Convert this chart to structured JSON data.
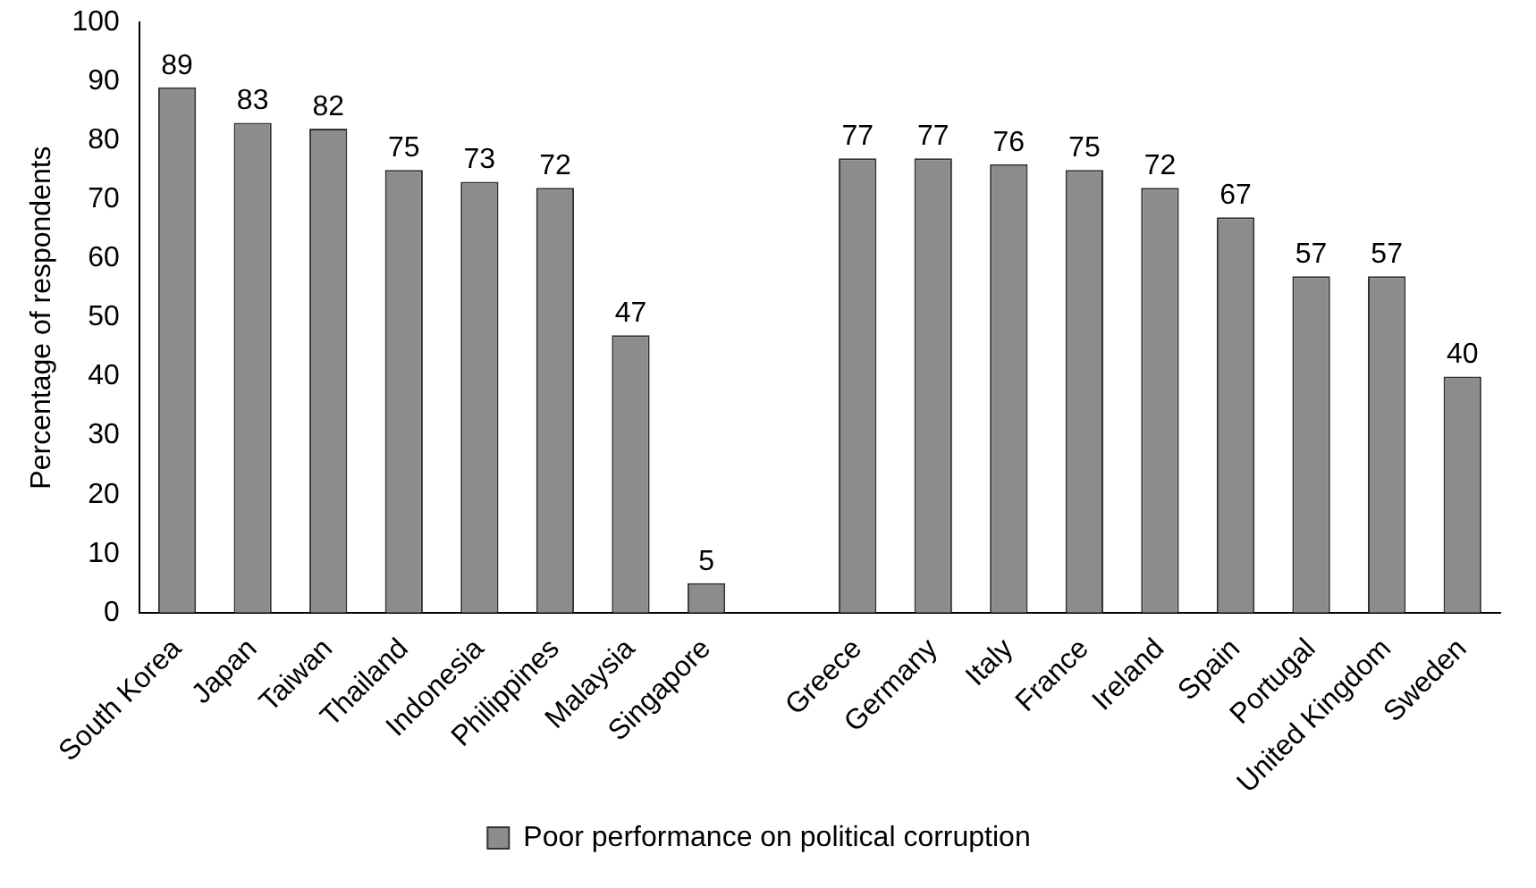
{
  "chart_data": {
    "type": "bar",
    "ylabel": "Percentage of respondents",
    "categories": [
      "South Korea",
      "Japan",
      "Taiwan",
      "Thailand",
      "Indonesia",
      "Philippines",
      "Malaysia",
      "Singapore",
      null,
      "Greece",
      "Germany",
      "Italy",
      "France",
      "Ireland",
      "Spain",
      "Portugal",
      "United Kingdom",
      "Sweden"
    ],
    "series": [
      {
        "name": "Poor performance on political corruption",
        "color": "#8c8c8c",
        "values": [
          89,
          83,
          82,
          75,
          73,
          72,
          47,
          5,
          null,
          77,
          77,
          76,
          75,
          72,
          67,
          57,
          57,
          40
        ]
      }
    ],
    "ylim": [
      0,
      100
    ],
    "yticks": [
      0,
      10,
      20,
      30,
      40,
      50,
      60,
      70,
      80,
      90,
      100
    ],
    "grid": false,
    "legend": "bottom",
    "data_labels": true
  }
}
